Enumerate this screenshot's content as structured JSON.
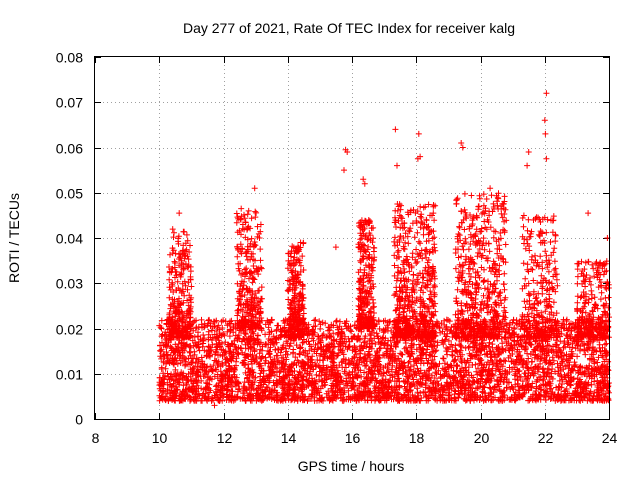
{
  "chart_data": {
    "type": "scatter",
    "title": "Day 277 of 2021, Rate Of TEC Index for receiver kalg",
    "xlabel": "GPS time / hours",
    "ylabel": "ROTI / TECUs",
    "xlim": [
      8,
      24
    ],
    "ylim": [
      0,
      0.08
    ],
    "x_ticks": [
      "8",
      "10",
      "12",
      "14",
      "16",
      "18",
      "20",
      "22",
      "24"
    ],
    "y_ticks": [
      "0",
      "0.01",
      "0.02",
      "0.03",
      "0.04",
      "0.05",
      "0.06",
      "0.07",
      "0.08"
    ],
    "grid": true,
    "marker": "+",
    "color": "#ff0000",
    "series": [
      {
        "name": "ROTI",
        "data_range_hours": [
          10,
          24
        ],
        "outlier_points": [
          [
            22.05,
            0.072
          ],
          [
            22.0,
            0.066
          ],
          [
            22.02,
            0.063
          ],
          [
            22.05,
            0.0575
          ],
          [
            17.35,
            0.064
          ],
          [
            18.08,
            0.063
          ],
          [
            15.8,
            0.0595
          ],
          [
            15.85,
            0.059
          ],
          [
            15.75,
            0.055
          ],
          [
            19.4,
            0.061
          ],
          [
            19.45,
            0.06
          ],
          [
            21.5,
            0.059
          ],
          [
            21.45,
            0.056
          ],
          [
            17.4,
            0.056
          ],
          [
            18.12,
            0.058
          ],
          [
            18.05,
            0.0575
          ],
          [
            16.35,
            0.053
          ],
          [
            16.4,
            0.052
          ],
          [
            12.97,
            0.051
          ],
          [
            20.3,
            0.051
          ],
          [
            12.55,
            0.0465
          ],
          [
            23.35,
            0.0455
          ],
          [
            10.62,
            0.0455
          ],
          [
            22.0,
            0.0445
          ],
          [
            16.2,
            0.038
          ],
          [
            15.5,
            0.038
          ],
          [
            14.4,
            0.039
          ],
          [
            23.95,
            0.04
          ],
          [
            11.72,
            0.003
          ],
          [
            17.6,
            0.04
          ],
          [
            19.95,
            0.047
          ],
          [
            20.15,
            0.046
          ]
        ],
        "dense_bands": [
          {
            "x": [
              10,
              24
            ],
            "y": [
              0.004,
              0.022
            ],
            "density": "very high"
          },
          {
            "x": [
              10.3,
              11.0
            ],
            "y": [
              0.018,
              0.042
            ],
            "density": "medium"
          },
          {
            "x": [
              12.4,
              13.2
            ],
            "y": [
              0.02,
              0.046
            ],
            "density": "medium"
          },
          {
            "x": [
              14.0,
              14.5
            ],
            "y": [
              0.018,
              0.039
            ],
            "density": "medium"
          },
          {
            "x": [
              16.2,
              16.7
            ],
            "y": [
              0.02,
              0.044
            ],
            "density": "medium"
          },
          {
            "x": [
              17.3,
              18.6
            ],
            "y": [
              0.018,
              0.048
            ],
            "density": "high"
          },
          {
            "x": [
              19.2,
              20.8
            ],
            "y": [
              0.018,
              0.05
            ],
            "density": "high"
          },
          {
            "x": [
              21.3,
              22.4
            ],
            "y": [
              0.018,
              0.045
            ],
            "density": "medium"
          },
          {
            "x": [
              23.0,
              24.0
            ],
            "y": [
              0.018,
              0.035
            ],
            "density": "medium"
          }
        ]
      }
    ]
  }
}
